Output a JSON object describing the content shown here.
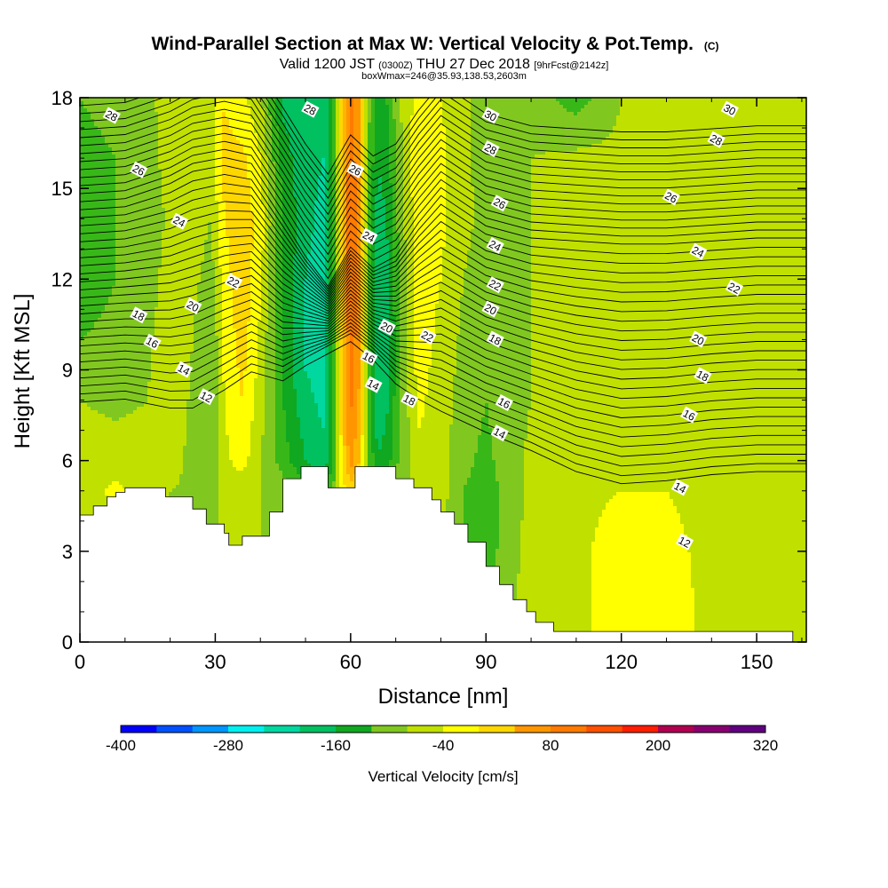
{
  "chart_data": {
    "type": "heatmap",
    "title": "Wind-Parallel Section at Max W: Vertical Velocity & Pot.Temp.",
    "title_units": "(C)",
    "subtitle": {
      "prefix": "Valid 1200 JST",
      "utc": "(0300Z)",
      "date": "THU 27 Dec 2018",
      "forecast": "[9hrFcst@2142z]"
    },
    "subtitle2": "boxWmax=246@35.93,138.53,2603m",
    "xlabel": "Distance [nm]",
    "ylabel": "Height [Kft MSL]",
    "xlim": [
      0,
      161
    ],
    "ylim": [
      0,
      18
    ],
    "xticks": [
      "0",
      "30",
      "60",
      "90",
      "120",
      "150"
    ],
    "yticks": [
      "0",
      "3",
      "6",
      "9",
      "12",
      "15",
      "18"
    ],
    "colorbar": {
      "label": "Vertical Velocity [cm/s]",
      "ticks": [
        "-400",
        "-280",
        "-160",
        "-40",
        "80",
        "200",
        "320"
      ],
      "range": [
        -400,
        320
      ],
      "step": 40,
      "colors": [
        "#0000ff",
        "#0050ff",
        "#0096ff",
        "#00c8ff",
        "#00f0f0",
        "#00d8a0",
        "#00c060",
        "#10a820",
        "#38b818",
        "#80c820",
        "#c0e000",
        "#ffff00",
        "#ffd700",
        "#ffb400",
        "#ff9600",
        "#ff7a00",
        "#ff5000",
        "#ff1e00",
        "#d8002a",
        "#b00050",
        "#880070",
        "#600080"
      ]
    },
    "terrain": [
      [
        0,
        4.2
      ],
      [
        3,
        4.2
      ],
      [
        3,
        4.5
      ],
      [
        6,
        4.5
      ],
      [
        6,
        4.8
      ],
      [
        8,
        4.8
      ],
      [
        8,
        4.95
      ],
      [
        10,
        4.95
      ],
      [
        10,
        5.1
      ],
      [
        19,
        5.1
      ],
      [
        19,
        4.8
      ],
      [
        25,
        4.8
      ],
      [
        25,
        4.4
      ],
      [
        28,
        4.4
      ],
      [
        28,
        3.9
      ],
      [
        32,
        3.9
      ],
      [
        32,
        3.6
      ],
      [
        33,
        3.6
      ],
      [
        33,
        3.2
      ],
      [
        36,
        3.2
      ],
      [
        36,
        3.5
      ],
      [
        42,
        3.5
      ],
      [
        42,
        4.3
      ],
      [
        45,
        4.3
      ],
      [
        45,
        5.4
      ],
      [
        49,
        5.4
      ],
      [
        49,
        5.8
      ],
      [
        55,
        5.8
      ],
      [
        55,
        5.1
      ],
      [
        61,
        5.1
      ],
      [
        61,
        5.8
      ],
      [
        70,
        5.8
      ],
      [
        70,
        5.4
      ],
      [
        74,
        5.4
      ],
      [
        74,
        5.1
      ],
      [
        78,
        5.1
      ],
      [
        78,
        4.7
      ],
      [
        80,
        4.7
      ],
      [
        80,
        4.3
      ],
      [
        83,
        4.3
      ],
      [
        83,
        3.9
      ],
      [
        86,
        3.9
      ],
      [
        86,
        3.3
      ],
      [
        90,
        3.3
      ],
      [
        90,
        2.5
      ],
      [
        93,
        2.5
      ],
      [
        93,
        1.9
      ],
      [
        96,
        1.9
      ],
      [
        96,
        1.4
      ],
      [
        99,
        1.4
      ],
      [
        99,
        1.0
      ],
      [
        101,
        1.0
      ],
      [
        101,
        0.65
      ],
      [
        105,
        0.65
      ],
      [
        105,
        0.35
      ],
      [
        158,
        0.35
      ],
      [
        158,
        0
      ]
    ],
    "vv_field": {
      "x": [
        0,
        8,
        15,
        20,
        24,
        29,
        32,
        36,
        40,
        45,
        50,
        54,
        56,
        58,
        60,
        62,
        64,
        66,
        68,
        71,
        75,
        80,
        85,
        90,
        100,
        110,
        120,
        130,
        140,
        150,
        161
      ],
      "y": [
        0,
        3,
        5,
        6,
        8,
        10,
        12,
        14,
        16,
        18
      ],
      "values": [
        [
          0,
          0,
          0,
          0,
          0,
          0,
          0,
          0,
          0,
          0,
          0,
          0,
          0,
          0,
          0,
          0,
          0,
          0,
          0,
          0,
          0,
          0,
          -20,
          -30,
          20,
          30,
          60,
          60,
          30,
          20,
          30
        ],
        [
          0,
          0,
          0,
          0,
          0,
          0,
          0,
          0,
          0,
          0,
          0,
          0,
          0,
          0,
          0,
          0,
          0,
          0,
          0,
          0,
          0,
          0,
          -40,
          -60,
          20,
          30,
          60,
          50,
          30,
          20,
          30
        ],
        [
          20,
          50,
          20,
          0,
          -10,
          -10,
          10,
          10,
          0,
          -20,
          -60,
          -80,
          -50,
          60,
          100,
          80,
          -20,
          -60,
          -40,
          -10,
          10,
          20,
          -40,
          -60,
          10,
          30,
          40,
          40,
          30,
          20,
          20
        ],
        [
          20,
          20,
          20,
          30,
          -10,
          -30,
          30,
          60,
          0,
          -60,
          -120,
          -150,
          -80,
          80,
          180,
          120,
          -40,
          -120,
          -100,
          -30,
          30,
          20,
          -30,
          -50,
          10,
          20,
          30,
          30,
          20,
          20,
          20
        ],
        [
          0,
          -10,
          0,
          40,
          0,
          -40,
          40,
          80,
          20,
          -80,
          -150,
          -170,
          -90,
          110,
          210,
          150,
          -50,
          -150,
          -130,
          -40,
          50,
          20,
          -20,
          -40,
          0,
          20,
          20,
          20,
          20,
          20,
          20
        ],
        [
          -40,
          -30,
          -10,
          30,
          10,
          -40,
          50,
          100,
          30,
          -90,
          -170,
          -180,
          -100,
          120,
          230,
          170,
          -60,
          -160,
          -140,
          -40,
          60,
          30,
          -10,
          -30,
          0,
          10,
          20,
          20,
          10,
          20,
          20
        ],
        [
          -60,
          -40,
          -20,
          20,
          20,
          -20,
          60,
          110,
          50,
          -80,
          -160,
          -180,
          -100,
          120,
          240,
          180,
          -60,
          -150,
          -130,
          -30,
          60,
          40,
          0,
          -20,
          0,
          10,
          10,
          10,
          0,
          10,
          10
        ],
        [
          -80,
          -40,
          -30,
          10,
          30,
          0,
          80,
          110,
          60,
          -80,
          -150,
          -170,
          -90,
          120,
          240,
          180,
          -50,
          -140,
          -120,
          -20,
          70,
          50,
          10,
          -10,
          0,
          10,
          10,
          10,
          0,
          10,
          10
        ],
        [
          -60,
          -40,
          -20,
          20,
          40,
          20,
          90,
          90,
          40,
          -100,
          -150,
          -160,
          -80,
          120,
          230,
          170,
          -40,
          -120,
          -100,
          -10,
          70,
          50,
          10,
          -20,
          0,
          10,
          10,
          10,
          0,
          10,
          10
        ],
        [
          -40,
          -20,
          -10,
          20,
          40,
          30,
          80,
          50,
          10,
          -130,
          -150,
          -150,
          -70,
          110,
          210,
          160,
          -30,
          -100,
          -80,
          0,
          60,
          40,
          10,
          -30,
          -20,
          -60,
          0,
          10,
          10,
          10,
          10
        ]
      ]
    },
    "theta_contours": {
      "levels": [
        12,
        14,
        16,
        18,
        20,
        22,
        24,
        26,
        28,
        30
      ],
      "control_x": [
        0,
        10,
        20,
        25,
        32,
        38,
        45,
        50,
        55,
        60,
        65,
        70,
        75,
        80,
        90,
        100,
        110,
        120,
        130,
        140,
        150,
        161
      ],
      "left_height_12": 8.2,
      "label_positions": [
        {
          "text": "28",
          "x": 7,
          "y": 17.4
        },
        {
          "text": "26",
          "x": 13,
          "y": 15.6
        },
        {
          "text": "24",
          "x": 22,
          "y": 13.9
        },
        {
          "text": "22",
          "x": 34,
          "y": 11.9
        },
        {
          "text": "20",
          "x": 25,
          "y": 11.1
        },
        {
          "text": "18",
          "x": 13,
          "y": 10.8
        },
        {
          "text": "16",
          "x": 16,
          "y": 9.9
        },
        {
          "text": "14",
          "x": 23,
          "y": 9.0
        },
        {
          "text": "12",
          "x": 28,
          "y": 8.1
        },
        {
          "text": "28",
          "x": 51,
          "y": 17.6
        },
        {
          "text": "26",
          "x": 61,
          "y": 15.6
        },
        {
          "text": "24",
          "x": 64,
          "y": 13.4
        },
        {
          "text": "20",
          "x": 68,
          "y": 10.4
        },
        {
          "text": "16",
          "x": 64,
          "y": 9.4
        },
        {
          "text": "14",
          "x": 65,
          "y": 8.5
        },
        {
          "text": "18",
          "x": 73,
          "y": 8.0
        },
        {
          "text": "22",
          "x": 77,
          "y": 10.1
        },
        {
          "text": "30",
          "x": 91,
          "y": 17.4
        },
        {
          "text": "28",
          "x": 91,
          "y": 16.3
        },
        {
          "text": "26",
          "x": 93,
          "y": 14.5
        },
        {
          "text": "24",
          "x": 92,
          "y": 13.1
        },
        {
          "text": "22",
          "x": 92,
          "y": 11.8
        },
        {
          "text": "20",
          "x": 91,
          "y": 11.0
        },
        {
          "text": "18",
          "x": 92,
          "y": 10.0
        },
        {
          "text": "16",
          "x": 94,
          "y": 7.9
        },
        {
          "text": "14",
          "x": 93,
          "y": 6.9
        },
        {
          "text": "30",
          "x": 144,
          "y": 17.6
        },
        {
          "text": "28",
          "x": 141,
          "y": 16.6
        },
        {
          "text": "26",
          "x": 131,
          "y": 14.7
        },
        {
          "text": "24",
          "x": 137,
          "y": 12.9
        },
        {
          "text": "22",
          "x": 145,
          "y": 11.7
        },
        {
          "text": "20",
          "x": 137,
          "y": 10.0
        },
        {
          "text": "18",
          "x": 138,
          "y": 8.8
        },
        {
          "text": "16",
          "x": 135,
          "y": 7.5
        },
        {
          "text": "14",
          "x": 133,
          "y": 5.1
        },
        {
          "text": "12",
          "x": 134,
          "y": 3.3
        }
      ]
    }
  }
}
